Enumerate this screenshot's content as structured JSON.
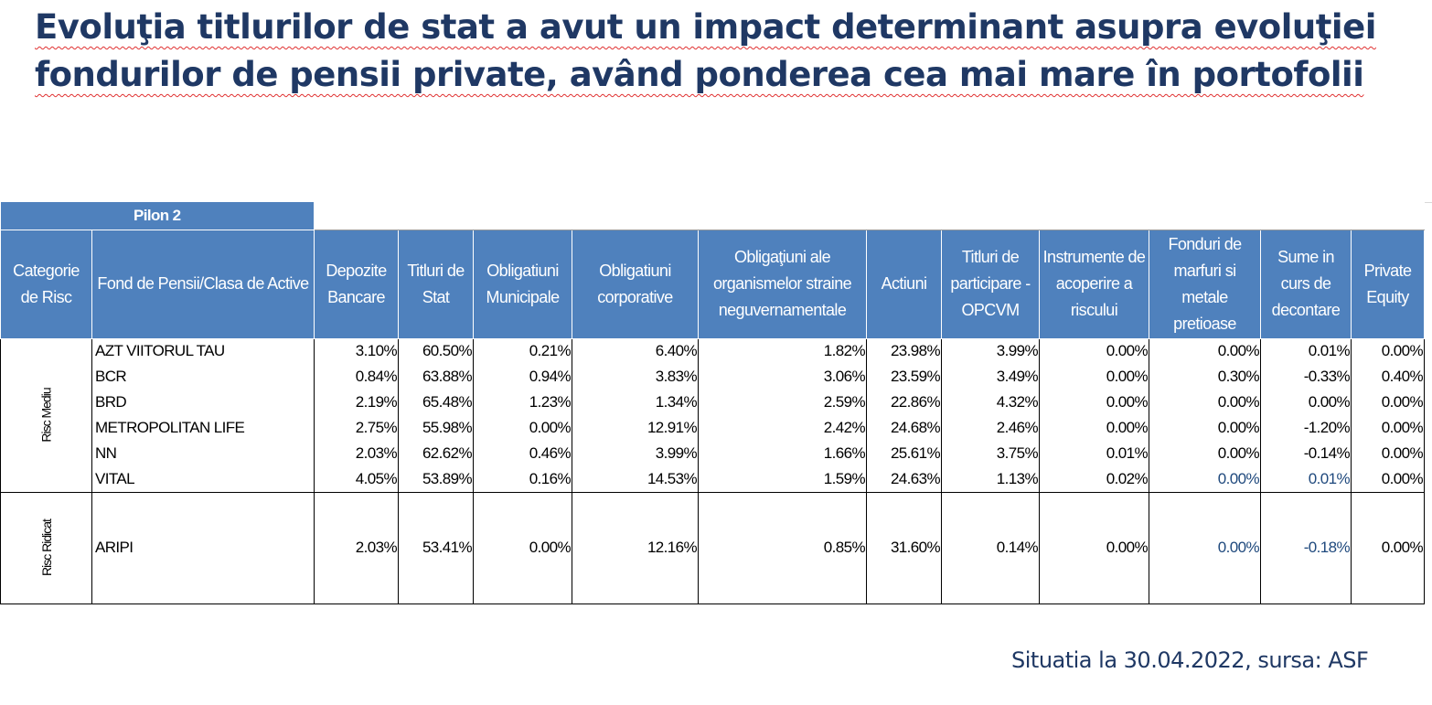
{
  "title": {
    "line1": "Evoluţia titlurilor de stat a avut un impact determinant asupra evoluţiei",
    "line2": "fondurilor de pensii private, având ponderea cea mai mare în portofolii"
  },
  "table": {
    "group_label": "Pilon 2",
    "headers": [
      "Categorie de Risc",
      "Fond de Pensii/Clasa de Active",
      "Depozite Bancare",
      "Titluri de Stat",
      "Obligatiuni Municipale",
      "Obligatiuni corporative",
      "Obligaţiuni ale organismelor straine neguvernamentale",
      "Actiuni",
      "Titluri de participare - OPCVM",
      "Instrumente de acoperire a riscului",
      "Fonduri de marfuri si metale pretioase",
      "Sume in curs de decontare",
      "Private Equity"
    ],
    "groups": [
      {
        "category": "Risc Mediu",
        "rows": [
          {
            "fund": "AZT VIITORUL TAU",
            "values": [
              "3.10%",
              "60.50%",
              "0.21%",
              "6.40%",
              "1.82%",
              "23.98%",
              "3.99%",
              "0.00%",
              "0.00%",
              "0.01%",
              "0.00%"
            ]
          },
          {
            "fund": "BCR",
            "values": [
              "0.84%",
              "63.88%",
              "0.94%",
              "3.83%",
              "3.06%",
              "23.59%",
              "3.49%",
              "0.00%",
              "0.30%",
              "-0.33%",
              "0.40%"
            ]
          },
          {
            "fund": "BRD",
            "values": [
              "2.19%",
              "65.48%",
              "1.23%",
              "1.34%",
              "2.59%",
              "22.86%",
              "4.32%",
              "0.00%",
              "0.00%",
              "0.00%",
              "0.00%"
            ]
          },
          {
            "fund": "METROPOLITAN LIFE",
            "values": [
              "2.75%",
              "55.98%",
              "0.00%",
              "12.91%",
              "2.42%",
              "24.68%",
              "2.46%",
              "0.00%",
              "0.00%",
              "-1.20%",
              "0.00%"
            ]
          },
          {
            "fund": "NN",
            "values": [
              "2.03%",
              "62.62%",
              "0.46%",
              "3.99%",
              "1.66%",
              "25.61%",
              "3.75%",
              "0.01%",
              "0.00%",
              "-0.14%",
              "0.00%"
            ]
          },
          {
            "fund": "VITAL",
            "values": [
              "4.05%",
              "53.89%",
              "0.16%",
              "14.53%",
              "1.59%",
              "24.63%",
              "1.13%",
              "0.02%",
              "0.00%",
              "0.01%",
              "0.00%"
            ]
          }
        ]
      },
      {
        "category": "Risc Ridicat",
        "rows": [
          {
            "fund": "ARIPI",
            "values": [
              "2.03%",
              "53.41%",
              "0.00%",
              "12.16%",
              "0.85%",
              "31.60%",
              "0.14%",
              "0.00%",
              "0.00%",
              "-0.18%",
              "0.00%"
            ]
          }
        ]
      }
    ]
  },
  "footer": {
    "source": "Situatia la 30.04.2022, sursa: ASF"
  }
}
